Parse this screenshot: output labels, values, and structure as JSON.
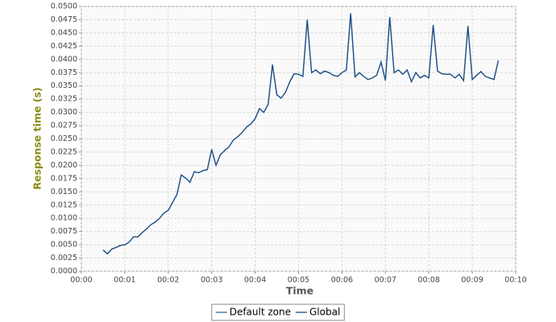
{
  "chart_data": {
    "type": "line",
    "xlabel": "Time",
    "ylabel": "Response time (s)",
    "x": [
      0.5,
      0.6,
      0.7,
      0.8,
      0.9,
      1.0,
      1.1,
      1.2,
      1.3,
      1.4,
      1.5,
      1.6,
      1.7,
      1.8,
      1.9,
      2.0,
      2.1,
      2.2,
      2.3,
      2.4,
      2.5,
      2.6,
      2.7,
      2.8,
      2.9,
      3.0,
      3.1,
      3.2,
      3.3,
      3.4,
      3.5,
      3.6,
      3.7,
      3.8,
      3.9,
      4.0,
      4.1,
      4.2,
      4.3,
      4.4,
      4.5,
      4.6,
      4.7,
      4.8,
      4.9,
      5.0,
      5.1,
      5.2,
      5.3,
      5.4,
      5.5,
      5.6,
      5.7,
      5.8,
      5.9,
      6.0,
      6.1,
      6.2,
      6.3,
      6.4,
      6.5,
      6.6,
      6.7,
      6.8,
      6.9,
      7.0,
      7.1,
      7.2,
      7.3,
      7.4,
      7.5,
      7.6,
      7.7,
      7.8,
      7.9,
      8.0,
      8.1,
      8.2,
      8.3,
      8.4,
      8.5,
      8.6,
      8.7,
      8.8,
      8.9,
      9.0,
      9.1,
      9.2,
      9.3,
      9.4,
      9.5,
      9.6
    ],
    "series": [
      {
        "name": "Default zone",
        "color": "#2f6aa6",
        "values": [
          0.004,
          0.0033,
          0.0042,
          0.0045,
          0.0049,
          0.005,
          0.0055,
          0.0065,
          0.0065,
          0.0073,
          0.008,
          0.0088,
          0.0093,
          0.01,
          0.011,
          0.0115,
          0.013,
          0.0145,
          0.0182,
          0.0176,
          0.0168,
          0.0188,
          0.0186,
          0.019,
          0.0192,
          0.023,
          0.02,
          0.022,
          0.0228,
          0.0235,
          0.0248,
          0.0254,
          0.0262,
          0.0272,
          0.0278,
          0.0288,
          0.0307,
          0.03,
          0.0315,
          0.039,
          0.0333,
          0.0327,
          0.0338,
          0.0358,
          0.0373,
          0.0372,
          0.0368,
          0.0475,
          0.0375,
          0.038,
          0.0373,
          0.0378,
          0.0375,
          0.037,
          0.0368,
          0.0375,
          0.038,
          0.0487,
          0.0367,
          0.0375,
          0.0368,
          0.0362,
          0.0365,
          0.037,
          0.0395,
          0.036,
          0.048,
          0.0375,
          0.038,
          0.0372,
          0.038,
          0.0358,
          0.0375,
          0.0365,
          0.037,
          0.0365,
          0.0465,
          0.0378,
          0.0373,
          0.0372,
          0.0372,
          0.0365,
          0.0372,
          0.036,
          0.0463,
          0.0362,
          0.037,
          0.0377,
          0.0368,
          0.0365,
          0.0362,
          0.0398
        ]
      },
      {
        "name": "Global",
        "color": "#1d4f86",
        "values": [
          0.004,
          0.0033,
          0.0042,
          0.0045,
          0.0049,
          0.005,
          0.0055,
          0.0065,
          0.0065,
          0.0073,
          0.008,
          0.0088,
          0.0093,
          0.01,
          0.011,
          0.0115,
          0.013,
          0.0145,
          0.0182,
          0.0176,
          0.0168,
          0.0188,
          0.0186,
          0.019,
          0.0192,
          0.023,
          0.02,
          0.022,
          0.0228,
          0.0235,
          0.0248,
          0.0254,
          0.0262,
          0.0272,
          0.0278,
          0.0288,
          0.0307,
          0.03,
          0.0315,
          0.039,
          0.0333,
          0.0327,
          0.0338,
          0.0358,
          0.0373,
          0.0372,
          0.0368,
          0.0475,
          0.0375,
          0.038,
          0.0373,
          0.0378,
          0.0375,
          0.037,
          0.0368,
          0.0375,
          0.038,
          0.0487,
          0.0367,
          0.0375,
          0.0368,
          0.0362,
          0.0365,
          0.037,
          0.0395,
          0.036,
          0.048,
          0.0375,
          0.038,
          0.0372,
          0.038,
          0.0358,
          0.0375,
          0.0365,
          0.037,
          0.0365,
          0.0465,
          0.0378,
          0.0373,
          0.0372,
          0.0372,
          0.0365,
          0.0372,
          0.036,
          0.0463,
          0.0362,
          0.037,
          0.0377,
          0.0368,
          0.0365,
          0.0362,
          0.0398
        ]
      }
    ],
    "xlim": [
      0,
      10
    ],
    "xticks": [
      {
        "value": 0,
        "label": "00:00"
      },
      {
        "value": 1,
        "label": "00:01"
      },
      {
        "value": 2,
        "label": "00:02"
      },
      {
        "value": 3,
        "label": "00:03"
      },
      {
        "value": 4,
        "label": "00:04"
      },
      {
        "value": 5,
        "label": "00:05"
      },
      {
        "value": 6,
        "label": "00:06"
      },
      {
        "value": 7,
        "label": "00:07"
      },
      {
        "value": 8,
        "label": "00:08"
      },
      {
        "value": 9,
        "label": "00:09"
      },
      {
        "value": 10,
        "label": "00:10"
      }
    ],
    "ylim": [
      0,
      0.05
    ],
    "yticks": [
      {
        "value": 0,
        "label": "0.0000"
      },
      {
        "value": 0.0025,
        "label": "0.0025"
      },
      {
        "value": 0.005,
        "label": "0.0050"
      },
      {
        "value": 0.0075,
        "label": "0.0075"
      },
      {
        "value": 0.01,
        "label": "0.0100"
      },
      {
        "value": 0.0125,
        "label": "0.0125"
      },
      {
        "value": 0.015,
        "label": "0.0150"
      },
      {
        "value": 0.0175,
        "label": "0.0175"
      },
      {
        "value": 0.02,
        "label": "0.0200"
      },
      {
        "value": 0.0225,
        "label": "0.0225"
      },
      {
        "value": 0.025,
        "label": "0.0250"
      },
      {
        "value": 0.0275,
        "label": "0.0275"
      },
      {
        "value": 0.03,
        "label": "0.0300"
      },
      {
        "value": 0.0325,
        "label": "0.0325"
      },
      {
        "value": 0.035,
        "label": "0.0350"
      },
      {
        "value": 0.0375,
        "label": "0.0375"
      },
      {
        "value": 0.04,
        "label": "0.0400"
      },
      {
        "value": 0.0425,
        "label": "0.0425"
      },
      {
        "value": 0.045,
        "label": "0.0450"
      },
      {
        "value": 0.0475,
        "label": "0.0475"
      },
      {
        "value": 0.05,
        "label": "0.0500"
      }
    ],
    "grid": true,
    "legend": "bottom"
  }
}
